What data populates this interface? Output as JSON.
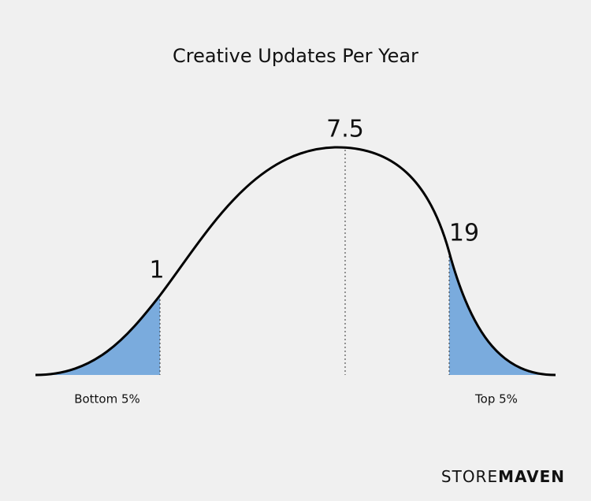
{
  "title": "Creative Updates Per Year",
  "markers": {
    "low": "1",
    "mean": "7.5",
    "high": "19"
  },
  "regions": {
    "bottom": "Bottom 5%",
    "top": "Top 5%"
  },
  "logo": {
    "light": "STORE",
    "bold": "MAVEN"
  }
}
